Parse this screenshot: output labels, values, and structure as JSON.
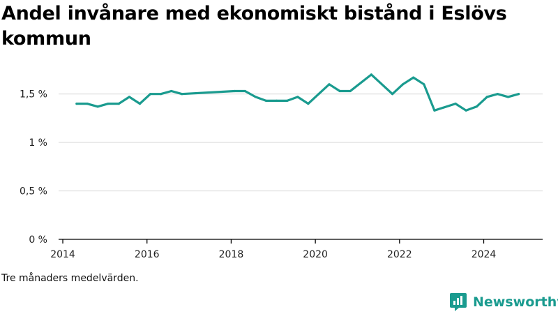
{
  "title": "Andel invånare med ekonomiskt bistånd i Eslövs kommun",
  "note": "Tre månaders medelvärden.",
  "brand": {
    "name": "Newsworthy",
    "logo_icon": "newsworthy-logo-icon"
  },
  "colors": {
    "line": "#1a9b8f",
    "grid": "#d9d9d9",
    "axis": "#000000"
  },
  "chart_data": {
    "type": "line",
    "title": "Andel invånare med ekonomiskt bistånd i Eslövs kommun",
    "xlabel": "",
    "ylabel": "",
    "y_ticks": [
      {
        "value": 0,
        "label": "0 %"
      },
      {
        "value": 0.5,
        "label": "0,5 %"
      },
      {
        "value": 1,
        "label": "1 %"
      },
      {
        "value": 1.5,
        "label": "1,5 %"
      }
    ],
    "x_ticks": [
      {
        "value": 2014,
        "label": "2014"
      },
      {
        "value": 2016,
        "label": "2016"
      },
      {
        "value": 2018,
        "label": "2018"
      },
      {
        "value": 2020,
        "label": "2020"
      },
      {
        "value": 2022,
        "label": "2022"
      },
      {
        "value": 2024,
        "label": "2024"
      }
    ],
    "xlim": [
      2013.9,
      2025.4
    ],
    "ylim": [
      0,
      1.75
    ],
    "grid": true,
    "series": [
      {
        "x": [
          2014.33,
          2014.58,
          2014.83,
          2015.08,
          2015.33,
          2015.58,
          2015.83,
          2016.08,
          2016.33,
          2016.58,
          2016.83,
          2018.08,
          2018.33,
          2018.58,
          2018.83,
          2019.08,
          2019.33,
          2019.58,
          2019.83,
          2020.08,
          2020.33,
          2020.58,
          2020.83,
          2021.33,
          2021.83,
          2022.08,
          2022.33,
          2022.58,
          2022.83,
          2023.33,
          2023.58,
          2023.83,
          2024.08,
          2024.33,
          2024.58,
          2024.83
        ],
        "y": [
          1.4,
          1.4,
          1.37,
          1.4,
          1.4,
          1.47,
          1.4,
          1.5,
          1.5,
          1.53,
          1.5,
          1.53,
          1.53,
          1.47,
          1.43,
          1.43,
          1.43,
          1.47,
          1.4,
          1.5,
          1.6,
          1.53,
          1.53,
          1.7,
          1.5,
          1.6,
          1.67,
          1.6,
          1.33,
          1.4,
          1.33,
          1.37,
          1.47,
          1.5,
          1.47,
          1.5
        ]
      }
    ]
  }
}
